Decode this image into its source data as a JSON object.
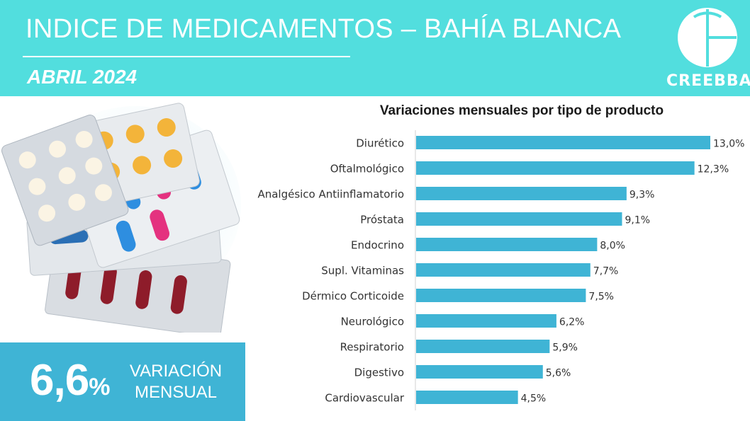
{
  "header": {
    "title": "INDICE DE MEDICAMENTOS – BAHÍA BLANCA",
    "subtitle": "ABRIL 2024",
    "logo_text": "CREEBBA"
  },
  "kpi": {
    "value": "6,6",
    "unit": "%",
    "label_line1": "VARIACIÓN",
    "label_line2": "MENSUAL"
  },
  "colors": {
    "header_bg": "#52dede",
    "bar": "#3fb4d5",
    "kpi_bg": "#3fb4d5",
    "text": "#333333"
  },
  "chart_data": {
    "type": "bar",
    "orientation": "horizontal",
    "title": "Variaciones mensuales por tipo de producto",
    "categories": [
      "Diurético",
      "Oftalmológico",
      "Analgésico Antiinflamatorio",
      "Próstata",
      "Endocrino",
      "Supl. Vitaminas",
      "Dérmico Corticoide",
      "Neurológico",
      "Respiratorio",
      "Digestivo",
      "Cardiovascular"
    ],
    "values": [
      13.0,
      12.3,
      9.3,
      9.1,
      8.0,
      7.7,
      7.5,
      6.2,
      5.9,
      5.6,
      4.5
    ],
    "labels": [
      "13,0%",
      "12,3%",
      "9,3%",
      "9,1%",
      "8,0%",
      "7,7%",
      "7,5%",
      "6,2%",
      "5,9%",
      "5,6%",
      "4,5%"
    ],
    "xlim": [
      0,
      13
    ],
    "grid": false,
    "legend": "none"
  }
}
